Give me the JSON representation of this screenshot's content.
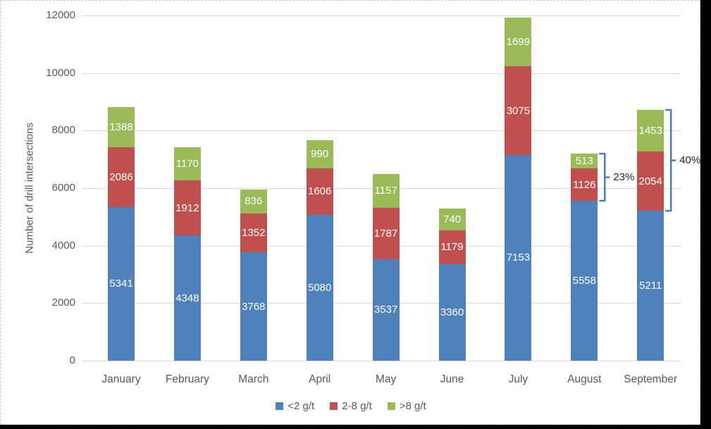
{
  "chart_data": {
    "type": "bar",
    "stacked": true,
    "title": "",
    "ylabel": "Number of drill intersections",
    "xlabel": "",
    "ylim": [
      0,
      12000
    ],
    "ytick_step": 2000,
    "grid": true,
    "legend_position": "bottom",
    "categories": [
      "January",
      "February",
      "March",
      "April",
      "May",
      "June",
      "July",
      "August",
      "September"
    ],
    "series": [
      {
        "name": "<2 g/t",
        "color": "#4f81bd",
        "values": [
          5341,
          4348,
          3768,
          5080,
          3537,
          3360,
          7153,
          5558,
          5211
        ]
      },
      {
        "name": "2-8 g/t",
        "color": "#c0504d",
        "values": [
          2086,
          1912,
          1352,
          1606,
          1787,
          1179,
          3075,
          1126,
          2054
        ]
      },
      {
        "name": ">8 g/t",
        "color": "#9bbb59",
        "values": [
          1388,
          1170,
          836,
          990,
          1157,
          740,
          1699,
          513,
          1453
        ]
      }
    ],
    "data_labels_color": "#ffffff",
    "annotations": [
      {
        "label": "23%",
        "category": "August",
        "covers_series_from": 1
      },
      {
        "label": "40%",
        "category": "September",
        "covers_series_from": 1
      }
    ],
    "annotation_color": "#4a7cc7",
    "gridline_color": "#d9d9d9",
    "axis_text_color": "#595959",
    "plot_background": "#ffffff",
    "outer_background": "#000000"
  }
}
